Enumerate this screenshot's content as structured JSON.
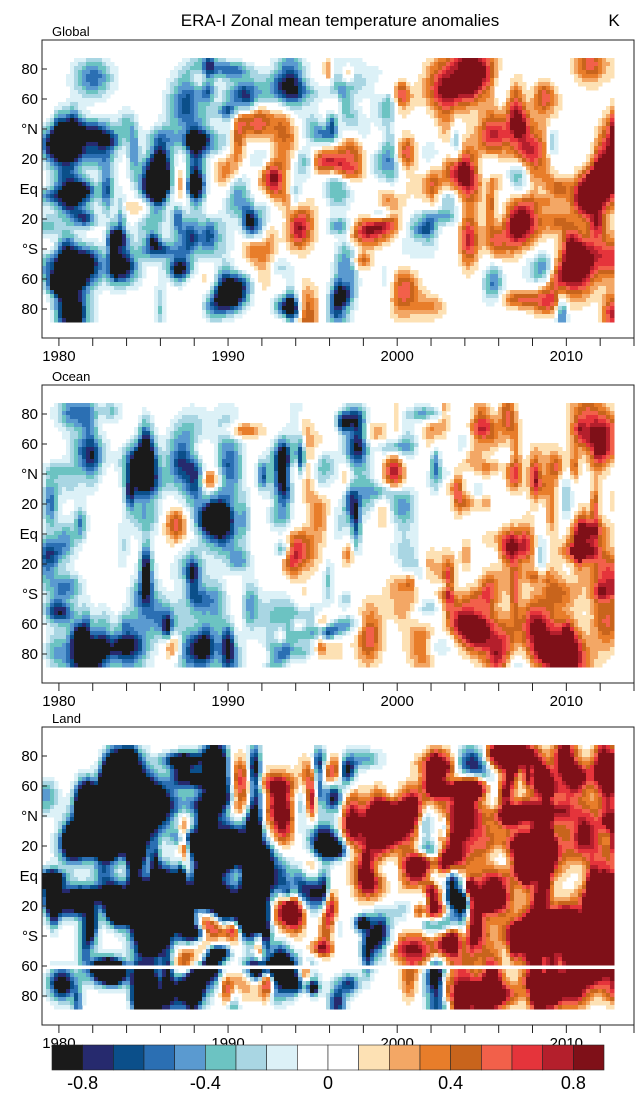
{
  "figure": {
    "title": "ERA-I   Zonal mean temperature anomalies",
    "unit": "K"
  },
  "chart_data": {
    "type": "heatmap",
    "x_axis": {
      "range": [
        1979,
        2014
      ],
      "ticks": [
        1980,
        1990,
        2000,
        2010
      ]
    },
    "y_axis": {
      "range": [
        -90,
        90
      ],
      "tick_values": [
        80,
        60,
        40,
        20,
        0,
        -20,
        -40,
        -60,
        -80
      ],
      "tick_labels": [
        "80",
        "60",
        "°N",
        "20",
        "Eq",
        "20",
        "°S",
        "60",
        "80"
      ]
    },
    "colorbar": {
      "range": [
        -0.9,
        0.9
      ],
      "labels": [
        {
          "value": -0.8,
          "text": "-0.8"
        },
        {
          "value": -0.4,
          "text": "-0.4"
        },
        {
          "value": 0,
          "text": "0"
        },
        {
          "value": 0.4,
          "text": "0.4"
        },
        {
          "value": 0.8,
          "text": "0.8"
        }
      ],
      "colors": [
        "#1a1a1a",
        "#262a6e",
        "#0b4f8a",
        "#2b6fb3",
        "#5a9ad0",
        "#6cc3c2",
        "#a9d6e3",
        "#dcf1f7",
        "#ffffff",
        "#ffffff",
        "#fde1b4",
        "#f3a765",
        "#e87d2a",
        "#c8641c",
        "#f2604a",
        "#e5343b",
        "#b41f2c",
        "#7f1018"
      ]
    },
    "panels": [
      {
        "label": "Global",
        "land_gap": null
      },
      {
        "label": "Ocean",
        "land_gap": null
      },
      {
        "label": "Land",
        "land_gap": [
          -58,
          -62
        ]
      }
    ]
  }
}
